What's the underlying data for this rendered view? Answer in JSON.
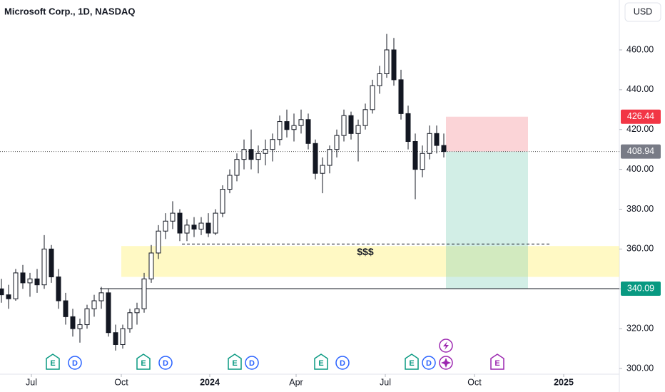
{
  "chart_data": {
    "type": "candlestick",
    "title": "Microsoft Corp., 1D, NASDAQ",
    "currency": "USD",
    "candle_color": "#131722",
    "candles": [
      [
        340,
        345,
        333,
        337
      ],
      [
        337,
        342,
        330,
        335
      ],
      [
        335,
        350,
        334,
        348
      ],
      [
        348,
        352,
        340,
        343
      ],
      [
        343,
        348,
        336,
        345
      ],
      [
        345,
        350,
        338,
        342
      ],
      [
        342,
        367,
        340,
        360
      ],
      [
        360,
        362,
        343,
        346
      ],
      [
        346,
        350,
        330,
        334
      ],
      [
        334,
        338,
        322,
        326
      ],
      [
        326,
        330,
        316,
        320
      ],
      [
        320,
        325,
        313,
        322
      ],
      [
        322,
        332,
        320,
        330
      ],
      [
        330,
        337,
        326,
        334
      ],
      [
        334,
        341,
        330,
        338
      ],
      [
        338,
        340,
        316,
        318
      ],
      [
        318,
        322,
        309,
        312
      ],
      [
        312,
        322,
        310,
        320
      ],
      [
        320,
        330,
        318,
        328
      ],
      [
        328,
        333,
        322,
        330
      ],
      [
        330,
        348,
        328,
        345
      ],
      [
        345,
        362,
        343,
        358
      ],
      [
        358,
        372,
        355,
        369
      ],
      [
        369,
        378,
        365,
        374
      ],
      [
        374,
        384,
        370,
        378
      ],
      [
        378,
        380,
        364,
        368
      ],
      [
        368,
        375,
        364,
        372
      ],
      [
        372,
        376,
        366,
        370
      ],
      [
        370,
        376,
        367,
        373
      ],
      [
        373,
        378,
        366,
        368
      ],
      [
        368,
        380,
        367,
        378
      ],
      [
        378,
        392,
        376,
        390
      ],
      [
        390,
        400,
        388,
        397
      ],
      [
        397,
        408,
        394,
        405
      ],
      [
        405,
        415,
        400,
        410
      ],
      [
        410,
        420,
        400,
        405
      ],
      [
        405,
        412,
        398,
        408
      ],
      [
        408,
        415,
        402,
        410
      ],
      [
        410,
        418,
        404,
        415
      ],
      [
        415,
        427,
        412,
        424
      ],
      [
        424,
        430,
        416,
        420
      ],
      [
        420,
        428,
        414,
        422
      ],
      [
        422,
        430,
        418,
        425
      ],
      [
        425,
        428,
        410,
        413
      ],
      [
        413,
        415,
        395,
        398
      ],
      [
        398,
        406,
        388,
        402
      ],
      [
        402,
        412,
        398,
        410
      ],
      [
        410,
        420,
        406,
        417
      ],
      [
        417,
        430,
        414,
        427
      ],
      [
        427,
        429,
        415,
        418
      ],
      [
        418,
        425,
        404,
        422
      ],
      [
        422,
        433,
        420,
        430
      ],
      [
        430,
        445,
        428,
        442
      ],
      [
        442,
        452,
        438,
        448
      ],
      [
        448,
        468,
        446,
        460
      ],
      [
        460,
        466,
        442,
        445
      ],
      [
        445,
        450,
        425,
        428
      ],
      [
        428,
        432,
        410,
        414
      ],
      [
        414,
        418,
        385,
        400
      ],
      [
        400,
        412,
        396,
        408
      ],
      [
        408,
        422,
        405,
        418
      ],
      [
        418,
        422,
        408,
        412
      ],
      [
        412,
        418,
        406,
        408.94
      ]
    ],
    "xlim": [
      -0.2,
      86.6
    ],
    "xticks": [
      {
        "value": 4.2,
        "label": "Jul"
      },
      {
        "value": 16.8,
        "label": "Oct"
      },
      {
        "value": 29.2,
        "label": "2024"
      },
      {
        "value": 41.3,
        "label": "Apr"
      },
      {
        "value": 53.8,
        "label": "Jul"
      },
      {
        "value": 66.3,
        "label": "Oct"
      },
      {
        "value": 78.8,
        "label": "2025"
      }
    ],
    "ylim": [
      297.14,
      485.05
    ],
    "yticks": [
      {
        "value": 300,
        "label": "300.00"
      },
      {
        "value": 320,
        "label": "320.00"
      },
      {
        "value": 340,
        "label": "340.00"
      },
      {
        "value": 360,
        "label": "360.00"
      },
      {
        "value": 380,
        "label": "380.00"
      },
      {
        "value": 400,
        "label": "400.00"
      },
      {
        "value": 420,
        "label": "420.00"
      },
      {
        "value": 440,
        "label": "440.00"
      },
      {
        "value": 460,
        "label": "460.00"
      }
    ],
    "zone": [
      346,
      361.5
    ],
    "zone_label": "$$$",
    "liquidity_level": 362.5,
    "support_level": 340.09,
    "position": {
      "stop": 426.44,
      "entry": 408.94,
      "target": 340.09
    },
    "events": [
      "E",
      "D",
      "E",
      "D",
      "E",
      "D",
      "E",
      "D",
      "E",
      "D",
      "E"
    ]
  }
}
